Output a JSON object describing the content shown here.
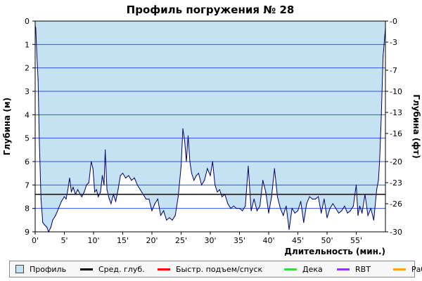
{
  "chart_data": {
    "type": "area",
    "title": "Профиль погружения № 28",
    "xlabel": "Длительность (мин.)",
    "ylabel_left": "Глубина (м)",
    "ylabel_right": "Глубина (фт)",
    "xlim": [
      0,
      60
    ],
    "ylim_left": [
      0,
      9
    ],
    "ylim_right": [
      0,
      30
    ],
    "y_inverted": true,
    "x_ticks": [
      "0'",
      "5'",
      "10'",
      "15'",
      "20'",
      "25'",
      "30'",
      "35'",
      "40'",
      "45'",
      "50'",
      "55'"
    ],
    "x_tick_values": [
      0,
      5,
      10,
      15,
      20,
      25,
      30,
      35,
      40,
      45,
      50,
      55
    ],
    "y_ticks_left": [
      "0",
      "1",
      "2",
      "3",
      "4",
      "5",
      "6",
      "7",
      "8",
      "9"
    ],
    "y_tick_values_left": [
      0,
      1,
      2,
      3,
      4,
      5,
      6,
      7,
      8,
      9
    ],
    "y_ticks_right": [
      "0",
      "3",
      "7",
      "10",
      "13",
      "16",
      "20",
      "23",
      "26",
      "30"
    ],
    "y_tick_values_right": [
      0,
      3,
      7,
      10,
      13,
      16,
      20,
      23,
      26,
      30
    ],
    "grid": true,
    "avg_depth_line": 7.4,
    "series": [
      {
        "name": "Профиль",
        "color": "#c4e2f2",
        "x": [
          0,
          0.1,
          0.3,
          0.5,
          0.7,
          1.0,
          1.3,
          1.6,
          2.0,
          2.3,
          2.7,
          3.0,
          3.5,
          4.0,
          4.5,
          5.0,
          5.3,
          5.6,
          5.9,
          6.2,
          6.5,
          6.9,
          7.3,
          7.7,
          8.0,
          8.4,
          8.8,
          9.2,
          9.6,
          9.9,
          10.2,
          10.5,
          10.8,
          11.2,
          11.5,
          11.8,
          12.0,
          12.3,
          12.7,
          13.0,
          13.4,
          13.8,
          14.2,
          14.6,
          15.0,
          15.5,
          16.0,
          16.5,
          17.0,
          17.5,
          18.0,
          18.5,
          19.0,
          19.5,
          20.0,
          20.5,
          21.0,
          21.5,
          22.0,
          22.5,
          23.0,
          23.5,
          24.0,
          24.5,
          25.0,
          25.3,
          25.6,
          25.9,
          26.2,
          26.5,
          26.8,
          27.2,
          27.6,
          28.0,
          28.5,
          29.0,
          29.5,
          30.0,
          30.4,
          30.8,
          31.2,
          31.6,
          32.0,
          32.5,
          33.0,
          33.5,
          34.0,
          34.5,
          35.0,
          35.5,
          36.0,
          36.5,
          37.0,
          37.5,
          38.0,
          38.5,
          39.0,
          39.5,
          40.0,
          40.5,
          41.0,
          41.5,
          42.0,
          42.5,
          43.0,
          43.5,
          44.0,
          44.5,
          45.0,
          45.5,
          46.0,
          46.5,
          47.0,
          47.5,
          48.0,
          48.5,
          49.0,
          49.5,
          50.0,
          50.5,
          51.0,
          51.5,
          52.0,
          52.5,
          53.0,
          53.5,
          54.0,
          54.5,
          55.0,
          55.3,
          55.6,
          56.0,
          56.5,
          57.0,
          57.5,
          58.0,
          58.5,
          58.8,
          59.0,
          59.3,
          59.6,
          60.0
        ],
        "y": [
          0.2,
          0.3,
          1.5,
          2.5,
          5.0,
          7.6,
          8.6,
          8.7,
          8.8,
          9.0,
          8.8,
          8.5,
          8.3,
          8.0,
          7.7,
          7.5,
          7.6,
          7.2,
          6.7,
          7.3,
          7.1,
          7.4,
          7.2,
          7.4,
          7.5,
          7.3,
          7.0,
          6.9,
          6.0,
          6.3,
          7.3,
          7.2,
          7.5,
          7.3,
          6.6,
          7.0,
          5.5,
          7.2,
          7.6,
          7.8,
          7.4,
          7.7,
          7.2,
          6.6,
          6.5,
          6.7,
          6.6,
          6.8,
          6.7,
          7.0,
          7.2,
          7.4,
          7.6,
          7.6,
          8.1,
          7.8,
          7.6,
          8.3,
          8.1,
          8.5,
          8.4,
          8.5,
          8.3,
          7.5,
          6.2,
          4.6,
          5.1,
          6.0,
          4.9,
          6.0,
          6.5,
          6.8,
          6.6,
          6.5,
          7.0,
          6.8,
          6.3,
          6.6,
          6.0,
          7.0,
          7.3,
          7.2,
          7.5,
          7.4,
          7.8,
          8.0,
          7.9,
          8.0,
          8.0,
          8.1,
          7.9,
          6.2,
          8.1,
          7.6,
          8.1,
          7.9,
          6.8,
          7.3,
          8.2,
          7.5,
          6.3,
          7.5,
          8.0,
          8.3,
          7.9,
          8.9,
          8.0,
          8.2,
          8.1,
          7.7,
          8.6,
          7.8,
          7.5,
          7.6,
          7.6,
          7.5,
          8.2,
          7.6,
          8.4,
          8.0,
          7.8,
          8.0,
          8.2,
          8.1,
          7.9,
          8.2,
          8.1,
          7.9,
          7.0,
          8.3,
          7.9,
          8.2,
          7.4,
          8.3,
          8.0,
          8.5,
          7.2,
          6.8,
          6.0,
          4.0,
          1.5,
          0.3
        ]
      }
    ]
  },
  "legend": {
    "items": [
      {
        "label": "Профиль",
        "color": "#c4e2f2",
        "kind": "box"
      },
      {
        "label": "Сред. глуб.",
        "color": "#000000",
        "kind": "line"
      },
      {
        "label": "Быстр. подъем/спуск",
        "color": "#ff0000",
        "kind": "line"
      },
      {
        "label": "Дека",
        "color": "#33dd33",
        "kind": "line"
      },
      {
        "label": "RBT",
        "color": "#9933ee",
        "kind": "line"
      },
      {
        "label": "Раб.",
        "color": "#ffa020",
        "kind": "line"
      }
    ]
  }
}
